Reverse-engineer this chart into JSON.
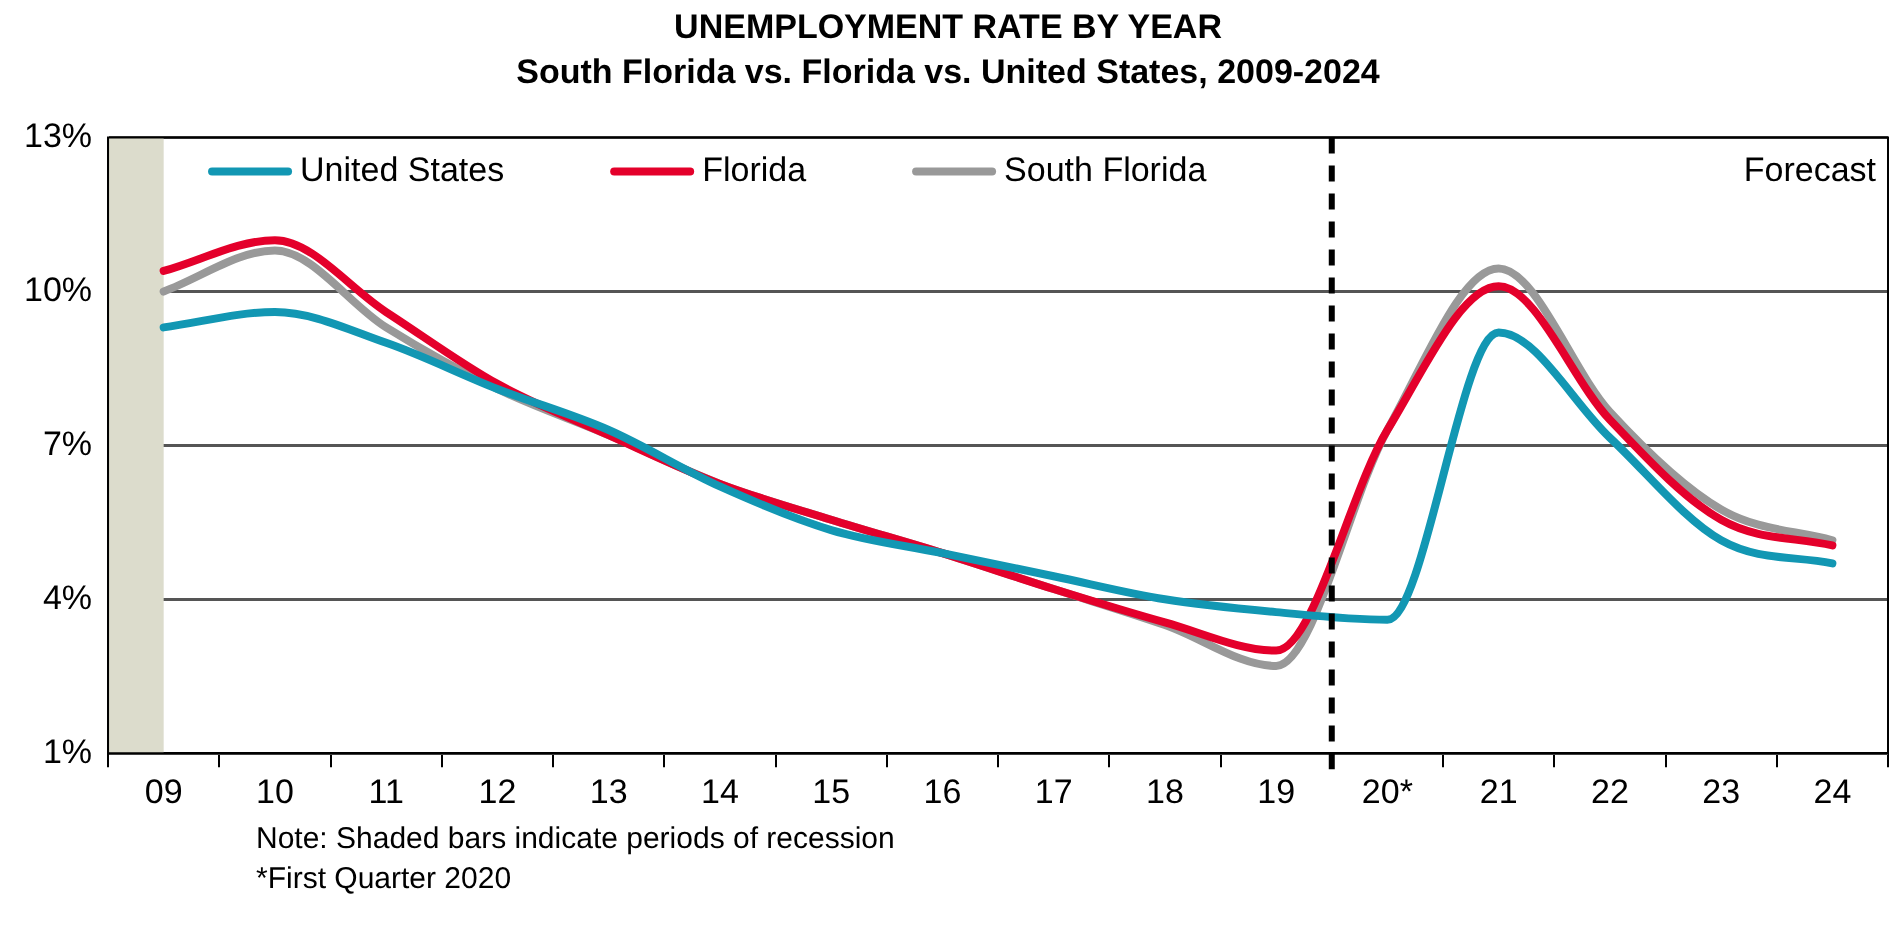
{
  "chart_data": {
    "type": "line",
    "title": "UNEMPLOYMENT RATE BY YEAR",
    "subtitle": "South Florida vs. Florida vs. United States, 2009-2024",
    "categories": [
      "09",
      "10",
      "11",
      "12",
      "13",
      "14",
      "15",
      "16",
      "17",
      "18",
      "19",
      "20*",
      "21",
      "22",
      "23",
      "24"
    ],
    "series": [
      {
        "name": "United States",
        "color": "#1297b3",
        "values": [
          9.3,
          9.6,
          9.0,
          8.1,
          7.3,
          6.2,
          5.35,
          4.9,
          4.45,
          4.0,
          3.75,
          3.6,
          9.2,
          7.15,
          5.15,
          4.7
        ]
      },
      {
        "name": "Florida",
        "color": "#e4002b",
        "values": [
          10.4,
          11.0,
          9.6,
          8.2,
          7.2,
          6.25,
          5.55,
          4.9,
          4.2,
          3.55,
          3.0,
          7.3,
          10.1,
          7.5,
          5.55,
          5.05
        ]
      },
      {
        "name": "South Florida",
        "color": "#999999",
        "values": [
          10.0,
          10.8,
          9.3,
          8.1,
          7.2,
          6.25,
          5.55,
          4.9,
          4.2,
          3.5,
          2.7,
          7.3,
          10.45,
          7.65,
          5.75,
          5.15
        ]
      }
    ],
    "ylim": [
      1,
      13
    ],
    "yticks": [
      {
        "value": 1,
        "label": "1%"
      },
      {
        "value": 4,
        "label": "4%"
      },
      {
        "value": 7,
        "label": "7%"
      },
      {
        "value": 10,
        "label": "10%"
      },
      {
        "value": 13,
        "label": "13%"
      }
    ],
    "grid": "y",
    "legend": "top",
    "marker": "none",
    "line_style": "solid",
    "ref_lines": [
      {
        "axis": "x",
        "value": "20*",
        "color": "#000000",
        "line_style": "dashed"
      }
    ],
    "bands": [
      {
        "axis": "x",
        "from": "09",
        "to": "09",
        "color": "#dcdccc"
      }
    ],
    "annotations": [
      "Forecast",
      "Note: Shaded bars indicate periods of recession",
      "*First Quarter 2020"
    ]
  }
}
